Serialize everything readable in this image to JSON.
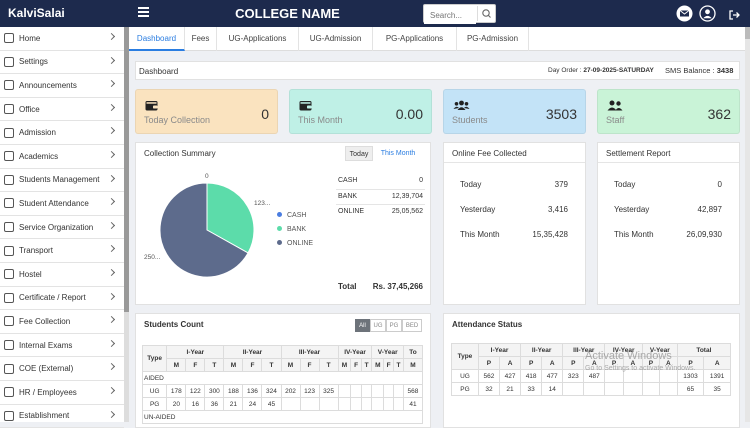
{
  "brand": "KalviSalai",
  "college": "COLLEGE NAME",
  "search": {
    "placeholder": "Search..."
  },
  "sidebar": [
    "Home",
    "Settings",
    "Announcements",
    "Office",
    "Admission",
    "Academics",
    "Students Management",
    "Student Attendance",
    "Service Organization",
    "Transport",
    "Hostel",
    "Certificate / Report",
    "Fee Collection",
    "Internal Exams",
    "COE (External)",
    "HR / Employees",
    "Establishment"
  ],
  "tabs": [
    "Dashboard",
    "Fees",
    "UG-Applications",
    "UG-Admission",
    "PG-Applications",
    "PG-Admission"
  ],
  "dash": {
    "title": "Dashboard",
    "day_order_label": "Day Order :",
    "day_order_value": "27-09-2025-SATURDAY",
    "sms_label": "SMS Balance :",
    "sms_value": "3438"
  },
  "stats": [
    {
      "label": "Today Collection",
      "value": "0",
      "color": "#fae3bf"
    },
    {
      "label": "This Month",
      "value": "0.00",
      "color": "#bff0e6"
    },
    {
      "label": "Students",
      "value": "3503",
      "color": "#c3e3f7"
    },
    {
      "label": "Staff",
      "value": "362",
      "color": "#c9f3d7"
    }
  ],
  "collection": {
    "title": "Collection Summary",
    "tab_today": "Today",
    "tab_month": "This Month",
    "labels": {
      "top": "0",
      "right": "123...",
      "left": "250..."
    },
    "legend": [
      "CASH",
      "BANK",
      "ONLINE"
    ],
    "rows": [
      {
        "k": "CASH",
        "v": "0"
      },
      {
        "k": "BANK",
        "v": "12,39,704"
      },
      {
        "k": "ONLINE",
        "v": "25,05,562"
      }
    ],
    "total_label": "Total",
    "total_value": "Rs. 37,45,266"
  },
  "chart_data": {
    "type": "pie",
    "categories": [
      "CASH",
      "BANK",
      "ONLINE"
    ],
    "values": [
      0,
      1239704,
      2505562
    ],
    "colors": [
      "#4a7de0",
      "#5cdcaa",
      "#5d6b8c"
    ]
  },
  "online": {
    "title": "Online Fee Collected",
    "rows": [
      {
        "k": "Today",
        "v": "379"
      },
      {
        "k": "Yesterday",
        "v": "3,416"
      },
      {
        "k": "This Month",
        "v": "15,35,428"
      }
    ]
  },
  "settlement": {
    "title": "Settlement Report",
    "rows": [
      {
        "k": "Today",
        "v": "0"
      },
      {
        "k": "Yesterday",
        "v": "42,897"
      },
      {
        "k": "This Month",
        "v": "26,09,930"
      }
    ]
  },
  "students_count": {
    "title": "Students Count",
    "filters": [
      "All",
      "UG",
      "PG",
      "BED"
    ],
    "years": [
      "I-Year",
      "II-Year",
      "III-Year",
      "IV-Year",
      "V-Year",
      "To"
    ],
    "sub": [
      "M",
      "F",
      "T"
    ],
    "type_label": "Type",
    "aided_label": "AIDED",
    "unaided_label": "UN-AIDED",
    "ug": [
      "178",
      "122",
      "300",
      "188",
      "136",
      "324",
      "202",
      "123",
      "325",
      "",
      "",
      "",
      "",
      "",
      "",
      "568"
    ],
    "pg": [
      "20",
      "16",
      "36",
      "21",
      "24",
      "45",
      "",
      "",
      "",
      "",
      "",
      "",
      "",
      "",
      "",
      "41"
    ]
  },
  "attendance": {
    "title": "Attendance Status",
    "type_label": "Type",
    "years": [
      "I-Year",
      "II-Year",
      "III-Year",
      "IV-Year",
      "V-Year",
      "Total"
    ],
    "sub": [
      "P",
      "A"
    ],
    "ug": [
      "UG",
      "562",
      "427",
      "418",
      "477",
      "323",
      "487",
      "",
      "",
      "",
      "",
      "1303",
      "1391"
    ],
    "pg": [
      "PG",
      "32",
      "21",
      "33",
      "14",
      "",
      "",
      "",
      "",
      "",
      "",
      "65",
      "35"
    ]
  },
  "watermark": {
    "line1": "Activate Windows",
    "line2": "Go to Settings to activate Windows."
  }
}
